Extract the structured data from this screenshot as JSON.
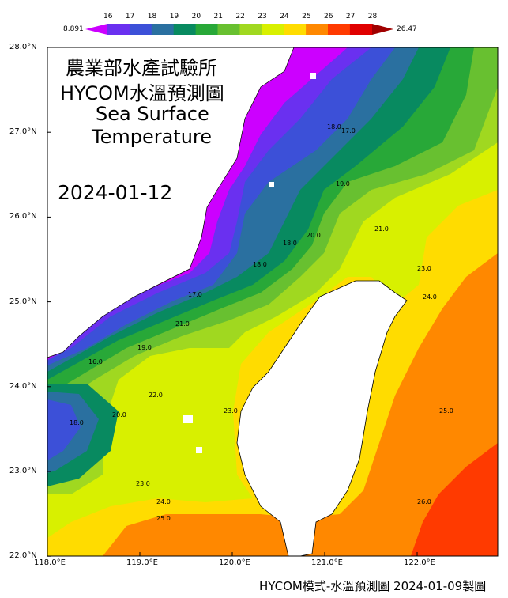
{
  "title": {
    "line1": "農業部水產試驗所",
    "line2": "HYCOM水溫預測圖",
    "line3": "Sea Surface",
    "line4": "Temperature",
    "date": "2024-01-12"
  },
  "caption": "HYCOM模式-水溫預測圖 2024-01-09製圖",
  "colorbar": {
    "min_label": "8.891",
    "max_label": "26.47",
    "ticks": [
      "16",
      "17",
      "18",
      "19",
      "20",
      "21",
      "22",
      "23",
      "24",
      "25",
      "26",
      "27",
      "28"
    ],
    "colors": {
      "below_16": "#cc00ff",
      "16_17": "#6a30f0",
      "17_18": "#3c50d8",
      "18_19": "#2a70a0",
      "19_20": "#088a60",
      "20_21": "#28a838",
      "21_22": "#68c030",
      "22_23": "#a0d820",
      "23_24": "#d8f000",
      "24_25": "#ffdc00",
      "25_26": "#ff8800",
      "26_27": "#ff3a00",
      "27_28": "#e00000",
      "above_28": "#a00000",
      "land": "#ffffff"
    }
  },
  "axes": {
    "lat_labels": [
      "28.0°N",
      "27.0°N",
      "26.0°N",
      "25.0°N",
      "24.0°N",
      "23.0°N",
      "22.0°N"
    ],
    "lon_labels": [
      "118.0°E",
      "119.0°E",
      "120.0°E",
      "121.0°E",
      "122.0°E"
    ]
  },
  "contour_labels": [
    "16.0",
    "17.0",
    "18.0",
    "18.0",
    "19.0",
    "20.0",
    "21.0",
    "17.0",
    "18.0",
    "23.0",
    "24.0",
    "21.0",
    "19.0",
    "20.0",
    "18.0",
    "22.0",
    "23.0",
    "23.0",
    "24.0",
    "25.0",
    "25.0",
    "26.0"
  ]
}
